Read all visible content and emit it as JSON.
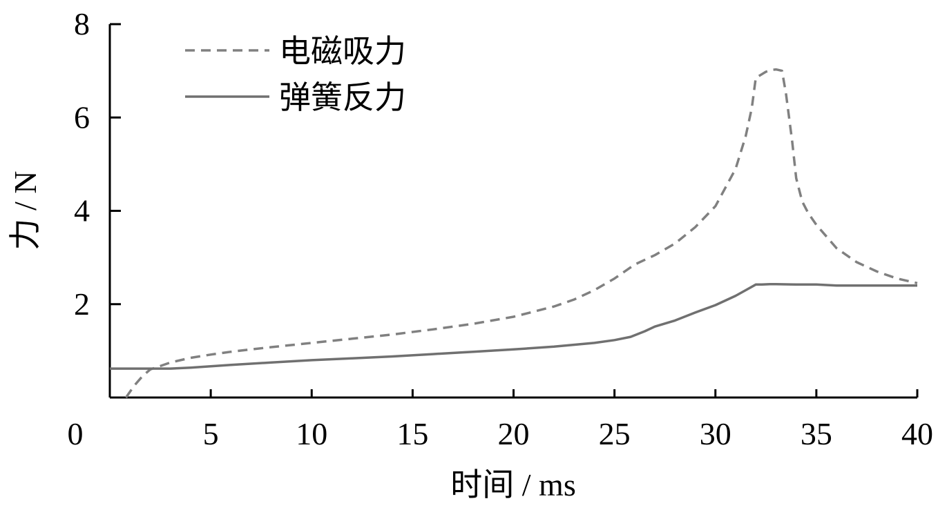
{
  "chart_data": {
    "type": "line",
    "xlabel": "时间 / ms",
    "ylabel": "力 / N",
    "xlim": [
      0,
      40
    ],
    "ylim": [
      0,
      8
    ],
    "x_ticks": [
      "0",
      "5",
      "10",
      "15",
      "20",
      "25",
      "30",
      "35",
      "40"
    ],
    "y_ticks": [
      "2",
      "4",
      "6",
      "8"
    ],
    "grid": false,
    "legend_position": "top-left",
    "series": [
      {
        "name": "电磁吸力",
        "style": "dashed",
        "color": "#808080",
        "x": [
          0.8,
          1.2,
          1.6,
          2.0,
          3,
          4,
          5,
          6,
          7,
          8,
          10,
          12,
          14,
          16,
          18,
          20,
          22,
          23,
          24,
          25,
          26,
          27,
          28,
          29,
          30,
          31,
          31.5,
          31.8,
          32.0,
          32.2,
          32.5,
          32.8,
          33.0,
          33.3,
          33.5,
          33.8,
          34.0,
          34.3,
          34.6,
          35,
          35.5,
          36,
          37,
          38,
          39,
          40
        ],
        "y": [
          0.0,
          0.25,
          0.45,
          0.6,
          0.75,
          0.85,
          0.92,
          0.98,
          1.03,
          1.08,
          1.17,
          1.26,
          1.35,
          1.46,
          1.58,
          1.73,
          1.95,
          2.1,
          2.3,
          2.55,
          2.85,
          3.05,
          3.3,
          3.65,
          4.1,
          4.9,
          5.6,
          6.2,
          6.85,
          6.9,
          6.98,
          7.02,
          7.03,
          7.0,
          6.5,
          5.5,
          4.7,
          4.2,
          3.95,
          3.7,
          3.45,
          3.2,
          2.9,
          2.7,
          2.55,
          2.45
        ]
      },
      {
        "name": "弹簧反力",
        "style": "solid",
        "color": "#707070",
        "x": [
          0,
          1,
          2,
          3,
          4,
          5,
          6,
          8,
          10,
          12,
          14,
          16,
          18,
          20,
          22,
          24,
          25,
          25.8,
          26.5,
          27,
          28,
          29,
          30,
          31,
          31.5,
          32,
          32.3,
          32.7,
          33,
          34,
          35,
          36,
          37,
          38,
          39,
          40
        ],
        "y": [
          0.62,
          0.62,
          0.62,
          0.62,
          0.64,
          0.67,
          0.7,
          0.75,
          0.8,
          0.84,
          0.88,
          0.93,
          0.98,
          1.03,
          1.09,
          1.17,
          1.23,
          1.3,
          1.42,
          1.52,
          1.65,
          1.82,
          1.98,
          2.18,
          2.3,
          2.42,
          2.42,
          2.43,
          2.43,
          2.42,
          2.42,
          2.4,
          2.4,
          2.4,
          2.4,
          2.4
        ]
      }
    ]
  }
}
